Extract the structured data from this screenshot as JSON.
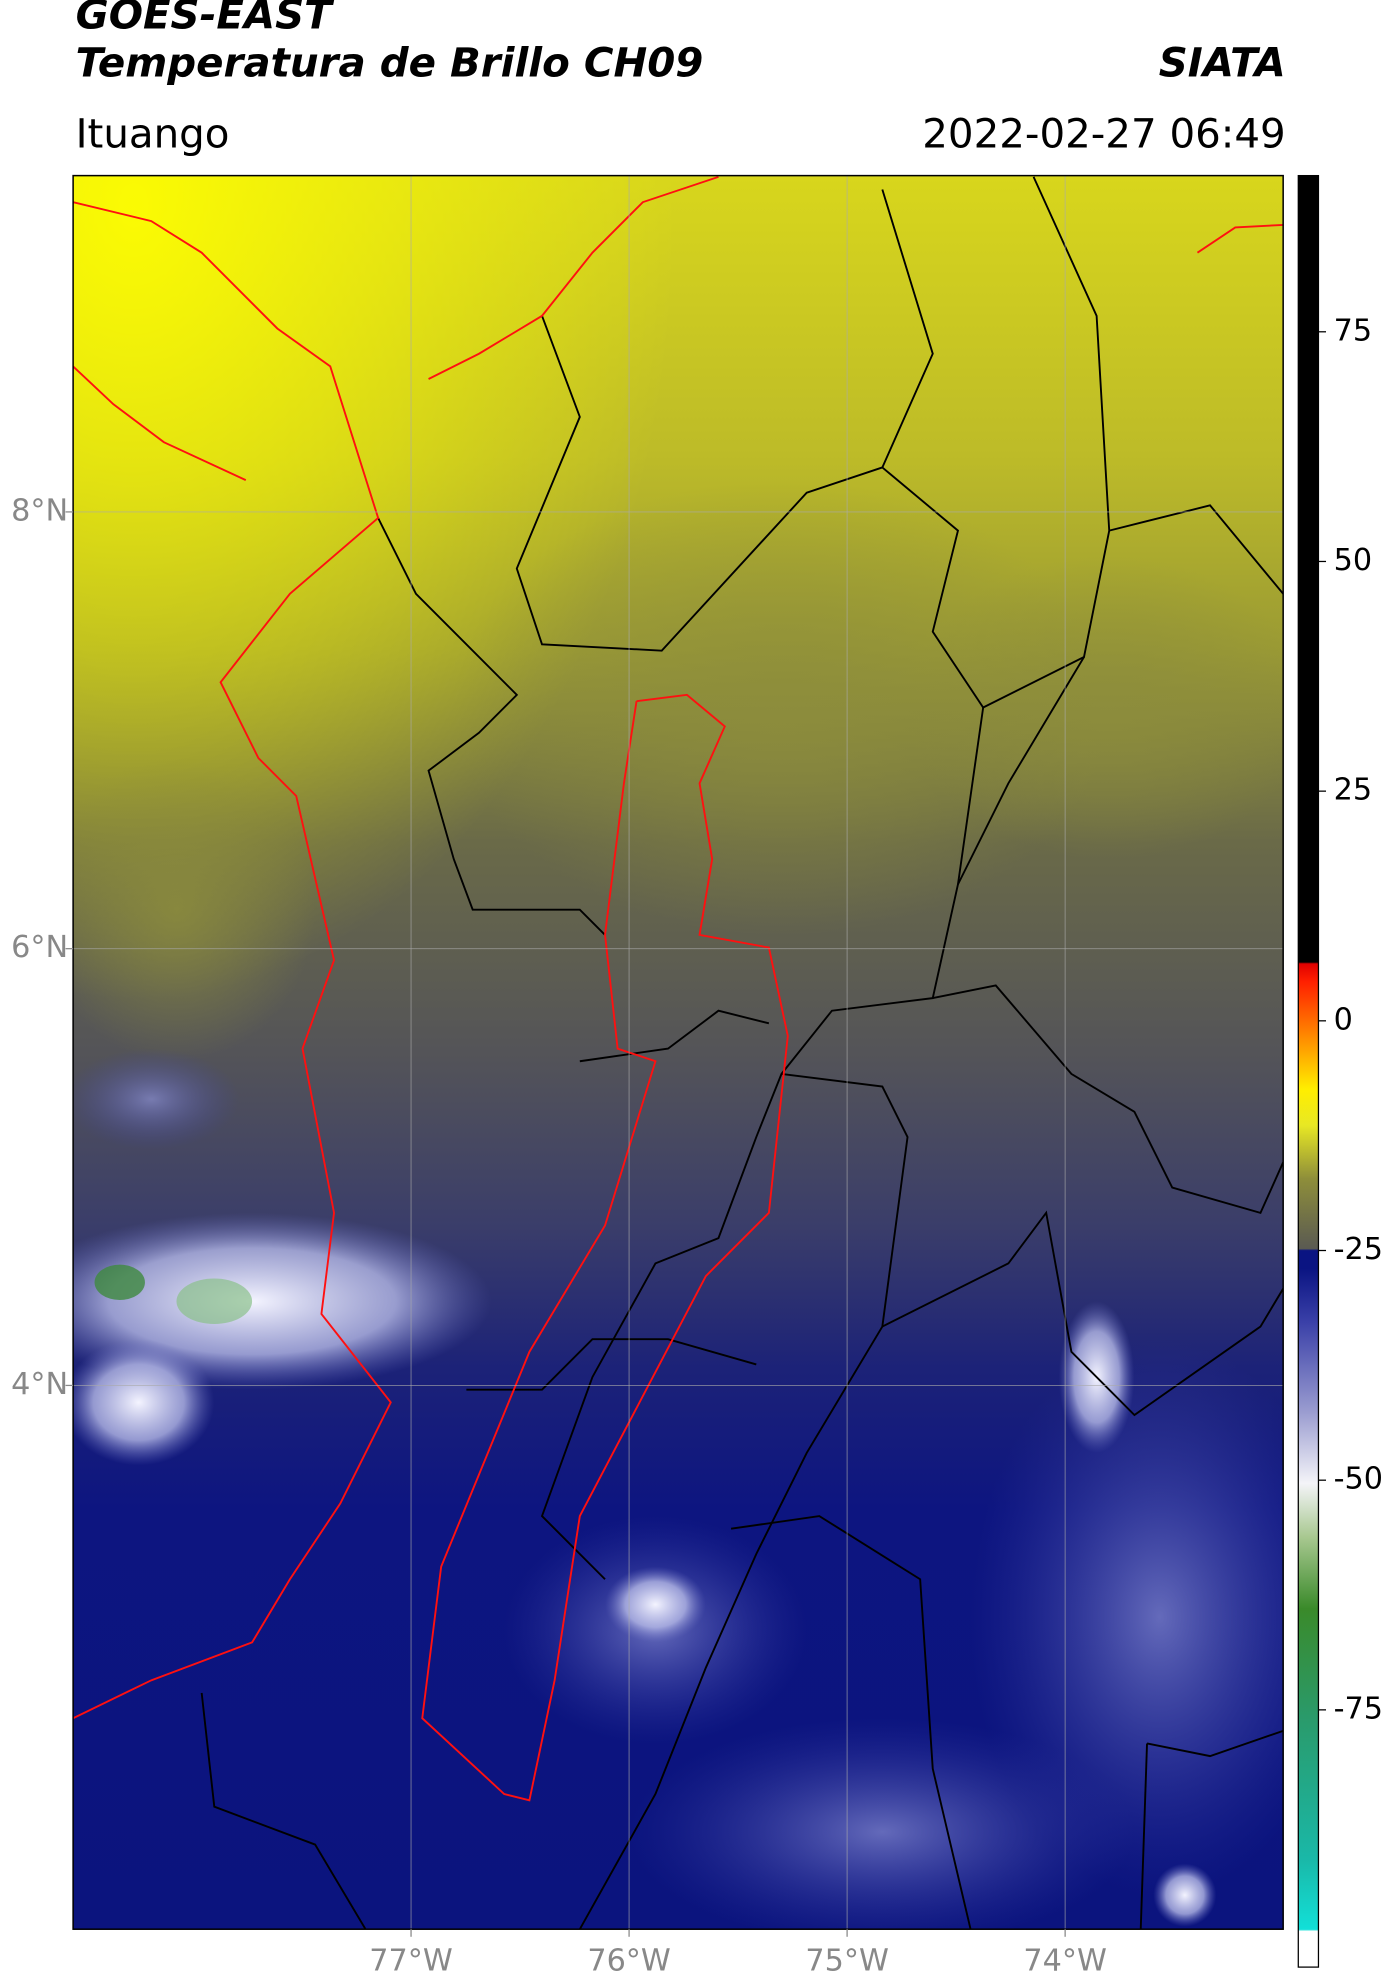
{
  "header": {
    "title": "GOES-EAST",
    "subtitle": "Temperatura de Brillo CH09",
    "source": "SIATA",
    "region": "Ituango",
    "datetime": "2022-02-27 06:49"
  },
  "map": {
    "xlim": [
      -78.55,
      -73.0
    ],
    "ylim": [
      1.51,
      9.54
    ],
    "xticks": [
      {
        "value": -77,
        "label": "77°W"
      },
      {
        "value": -76,
        "label": "76°W"
      },
      {
        "value": -75,
        "label": "75°W"
      },
      {
        "value": -74,
        "label": "74°W"
      }
    ],
    "yticks": [
      {
        "value": 4,
        "label": "4°N"
      },
      {
        "value": 6,
        "label": "6°N"
      },
      {
        "value": 8,
        "label": "8°N"
      }
    ]
  },
  "colorbar": {
    "lim": [
      -103,
      92
    ],
    "ticks": [
      -75,
      -50,
      -25,
      0,
      25,
      50,
      75
    ]
  }
}
